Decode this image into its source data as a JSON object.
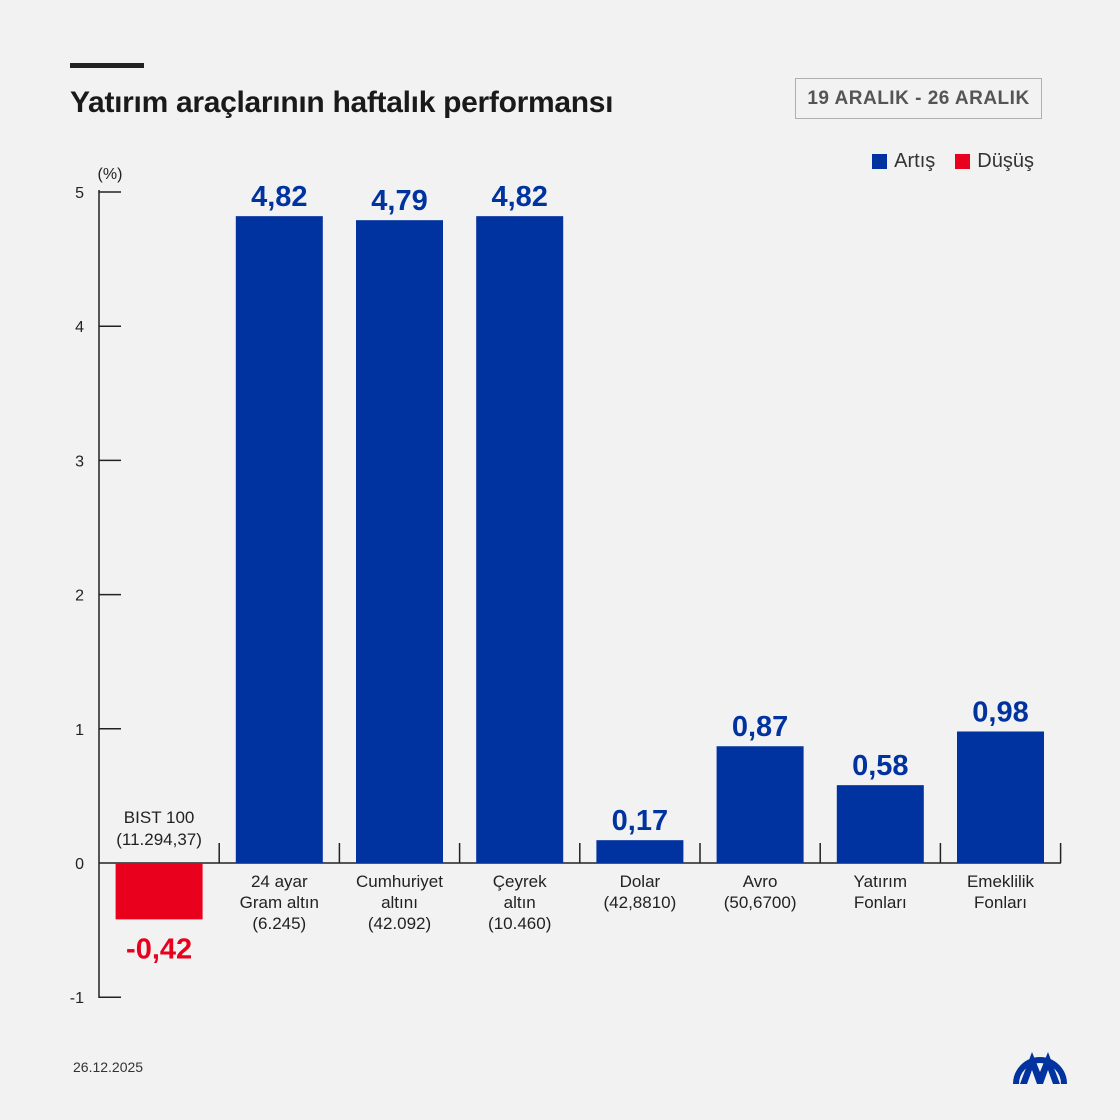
{
  "header": {
    "title": "Yatırım araçlarının haftalık performansı",
    "date_range": "19 ARALIK - 26 ARALIK"
  },
  "legend": [
    {
      "label": "Artış",
      "color": "#0033a0"
    },
    {
      "label": "Düşüş",
      "color": "#e8001c"
    }
  ],
  "footer": {
    "date": "26.12.2025",
    "logo": "AA"
  },
  "chart_data": {
    "type": "bar",
    "ylabel": "(%)",
    "ylim": [
      -1,
      5
    ],
    "yticks": [
      -1,
      0,
      1,
      2,
      3,
      4,
      5
    ],
    "categories": [
      [
        "BIST 100",
        "(11.294,37)"
      ],
      [
        "24 ayar",
        "Gram altın",
        "(6.245)"
      ],
      [
        "Cumhuriyet",
        "altını",
        "(42.092)"
      ],
      [
        "Çeyrek",
        "altın",
        "(10.460)"
      ],
      [
        "Dolar",
        "(42,8810)"
      ],
      [
        "Avro",
        "(50,6700)"
      ],
      [
        "Yatırım",
        "Fonları"
      ],
      [
        "Emeklilik",
        "Fonları"
      ]
    ],
    "values": [
      -0.42,
      4.82,
      4.79,
      4.82,
      0.17,
      0.87,
      0.58,
      0.98
    ],
    "data_labels": [
      "-0,42",
      "4,82",
      "4,79",
      "4,82",
      "0,17",
      "0,87",
      "0,58",
      "0,98"
    ],
    "colors": {
      "positive": "#0033a0",
      "negative": "#e8001c"
    },
    "grid": false
  }
}
